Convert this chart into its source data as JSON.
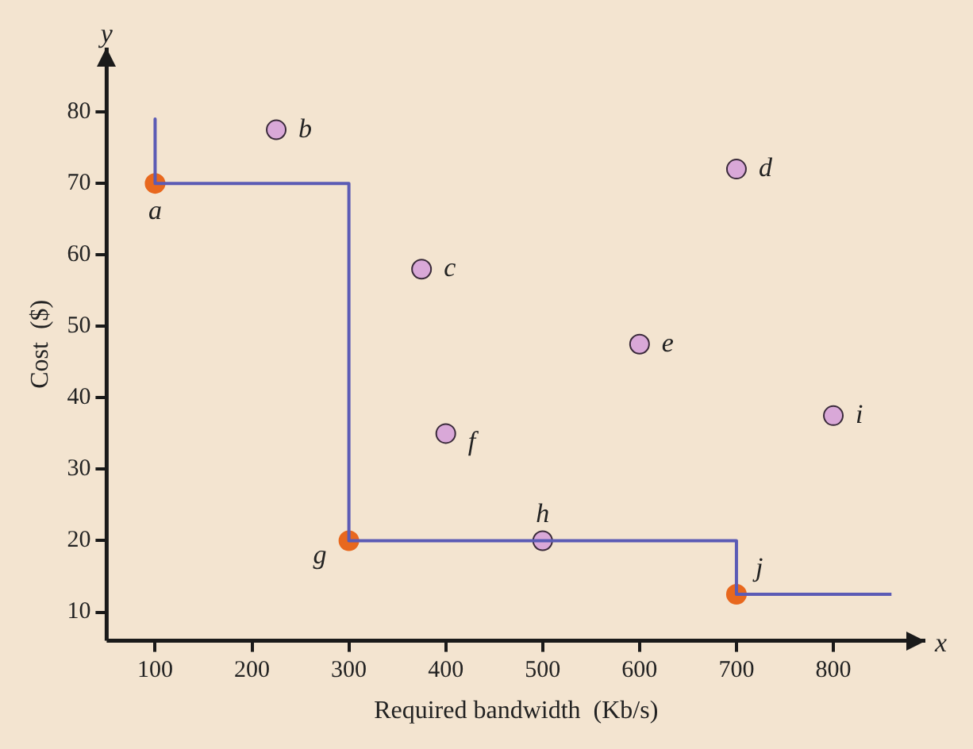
{
  "chart_data": {
    "type": "scatter",
    "xlabel": "Required bandwidth  (Kb/s)",
    "ylabel": "Cost  ($)",
    "xlim": [
      50,
      895
    ],
    "ylim": [
      6,
      89
    ],
    "xticks": [
      100,
      200,
      300,
      400,
      500,
      600,
      700,
      800
    ],
    "yticks": [
      10,
      20,
      30,
      40,
      50,
      60,
      70,
      80
    ],
    "grid": false,
    "legend": false,
    "marker": "circle",
    "series": [
      {
        "type": "line",
        "color": "#5b5bb5",
        "x": [
          100,
          100,
          300,
          300,
          700,
          700,
          860
        ],
        "values": [
          79,
          70,
          70,
          20,
          20,
          12.5,
          12.5
        ],
        "marker": "none",
        "line_style": "solid"
      },
      {
        "type": "scatter",
        "x": [
          100,
          225,
          375,
          700,
          600,
          400,
          300,
          500,
          800,
          700
        ],
        "values": [
          70,
          77.5,
          58,
          72,
          47.5,
          35,
          20,
          20,
          37.5,
          12.5
        ],
        "colors": [
          "#e8681e",
          "#d9a8d8",
          "#d9a8d8",
          "#d9a8d8",
          "#d9a8d8",
          "#d9a8d8",
          "#e8681e",
          "#d9a8d8",
          "#d9a8d8",
          "#e8681e"
        ]
      }
    ],
    "annotations": [
      {
        "text": "a",
        "x": 100,
        "y": 70
      },
      {
        "text": "b",
        "x": 225,
        "y": 77.5
      },
      {
        "text": "c",
        "x": 375,
        "y": 58
      },
      {
        "text": "d",
        "x": 700,
        "y": 72
      },
      {
        "text": "e",
        "x": 600,
        "y": 47.5
      },
      {
        "text": "f",
        "x": 400,
        "y": 35
      },
      {
        "text": "g",
        "x": 300,
        "y": 20
      },
      {
        "text": "h",
        "x": 500,
        "y": 20
      },
      {
        "text": "i",
        "x": 800,
        "y": 37.5
      },
      {
        "text": "j",
        "x": 700,
        "y": 12.5
      },
      "x",
      "y"
    ]
  }
}
